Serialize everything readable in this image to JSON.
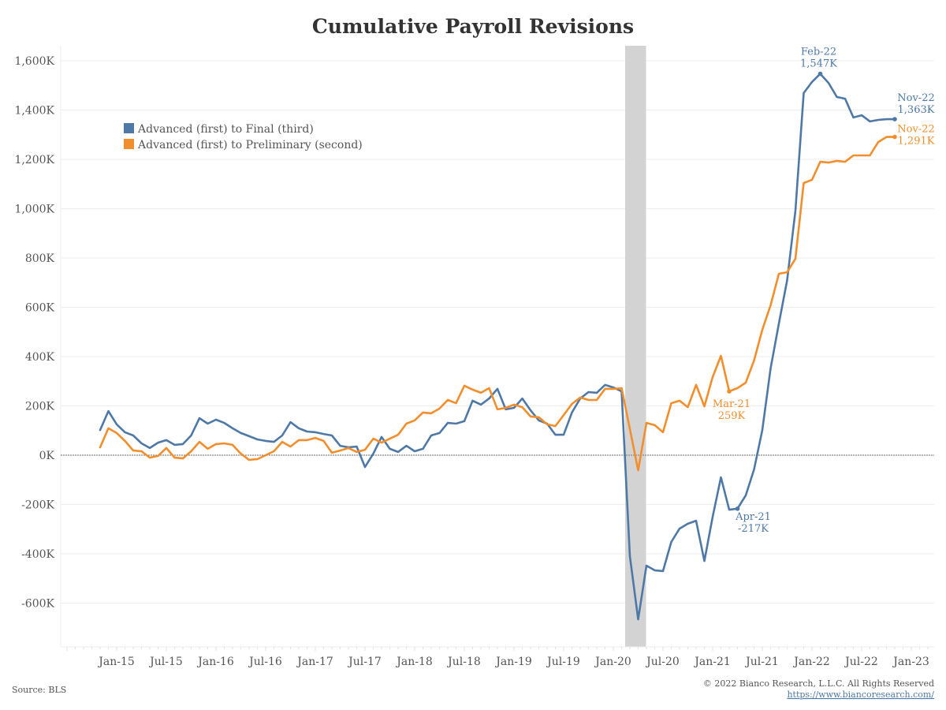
{
  "chart_data": {
    "type": "line",
    "title": "Cumulative Payroll Revisions",
    "xlabel": "",
    "ylabel": "",
    "x_start": "Nov-14",
    "x_end": "Nov-22",
    "x_frequency": "monthly",
    "x_ticks": [
      "Jan-15",
      "Jul-15",
      "Jan-16",
      "Jul-16",
      "Jan-17",
      "Jul-17",
      "Jan-18",
      "Jul-18",
      "Jan-19",
      "Jul-19",
      "Jan-20",
      "Jul-20",
      "Jan-21",
      "Jul-21",
      "Jan-22",
      "Jul-22",
      "Jan-23"
    ],
    "y_ticks": [
      "-600K",
      "-400K",
      "-200K",
      "0K",
      "200K",
      "400K",
      "600K",
      "800K",
      "1,000K",
      "1,200K",
      "1,400K",
      "1,600K"
    ],
    "y_tick_values": [
      -600,
      -400,
      -200,
      0,
      200,
      400,
      600,
      800,
      1000,
      1200,
      1400,
      1600
    ],
    "ylim": [
      -780,
      1660
    ],
    "y_units": "thousands",
    "grid": true,
    "zero_line": "dotted",
    "legend_position": "top-left",
    "recession_shading": {
      "start": "Mar-20",
      "end": "Apr-20",
      "color": "#d3d3d3"
    },
    "series": [
      {
        "name": "Advanced (first) to Final (third)",
        "color": "#4e79a7",
        "values": [
          102,
          179,
          125,
          93,
          80,
          48,
          29,
          51,
          61,
          42,
          45,
          80,
          150,
          128,
          144,
          131,
          109,
          90,
          77,
          64,
          58,
          54,
          80,
          134,
          109,
          96,
          93,
          86,
          80,
          38,
          32,
          35,
          -48,
          6,
          74,
          26,
          13,
          38,
          16,
          26,
          80,
          90,
          131,
          128,
          138,
          221,
          205,
          230,
          269,
          186,
          192,
          230,
          182,
          141,
          128,
          83,
          83,
          173,
          230,
          256,
          253,
          285,
          275,
          259,
          -410,
          -666,
          -448,
          -467,
          -470,
          -352,
          -298,
          -278,
          -266,
          -429,
          -250,
          -90,
          -221,
          -217,
          -163,
          -58,
          102,
          352,
          534,
          710,
          992,
          1469,
          1514,
          1547,
          1510,
          1453,
          1446,
          1370,
          1379,
          1354,
          1360,
          1363,
          1363
        ]
      },
      {
        "name": "Advanced (first) to Preliminary (second)",
        "color": "#f28e2b",
        "values": [
          32,
          109,
          90,
          58,
          19,
          16,
          -10,
          -3,
          29,
          -10,
          -13,
          16,
          54,
          26,
          45,
          48,
          42,
          6,
          -19,
          -16,
          0,
          16,
          54,
          35,
          61,
          61,
          70,
          58,
          10,
          19,
          29,
          13,
          22,
          67,
          51,
          67,
          83,
          128,
          141,
          173,
          170,
          189,
          224,
          211,
          282,
          266,
          253,
          272,
          186,
          192,
          205,
          195,
          157,
          154,
          125,
          118,
          163,
          208,
          234,
          224,
          224,
          269,
          269,
          272,
          106,
          -61,
          131,
          122,
          93,
          211,
          221,
          195,
          285,
          198,
          317,
          403,
          259,
          272,
          294,
          384,
          509,
          608,
          736,
          742,
          797,
          1104,
          1117,
          1190,
          1187,
          1194,
          1190,
          1216,
          1216,
          1216,
          1270,
          1291,
          1291
        ]
      }
    ],
    "annotations": [
      {
        "series": 0,
        "index": 87,
        "line1": "Feb-22",
        "line2": "1,547K",
        "placement": "above"
      },
      {
        "series": 0,
        "index": 96,
        "line1": "Nov-22",
        "line2": "1,363K",
        "placement": "right"
      },
      {
        "series": 1,
        "index": 96,
        "line1": "Nov-22",
        "line2": "1,291K",
        "placement": "right"
      },
      {
        "series": 1,
        "index": 76,
        "line1": "Mar-21",
        "line2": "259K",
        "placement": "below"
      },
      {
        "series": 0,
        "index": 77,
        "line1": "Apr-21",
        "line2": "-217K",
        "placement": "below-right"
      }
    ]
  },
  "footer": {
    "source": "Source: BLS",
    "copyright": "© 2022 Bianco Research, L.L.C. All Rights Reserved",
    "url": "https://www.biancoresearch.com/"
  }
}
